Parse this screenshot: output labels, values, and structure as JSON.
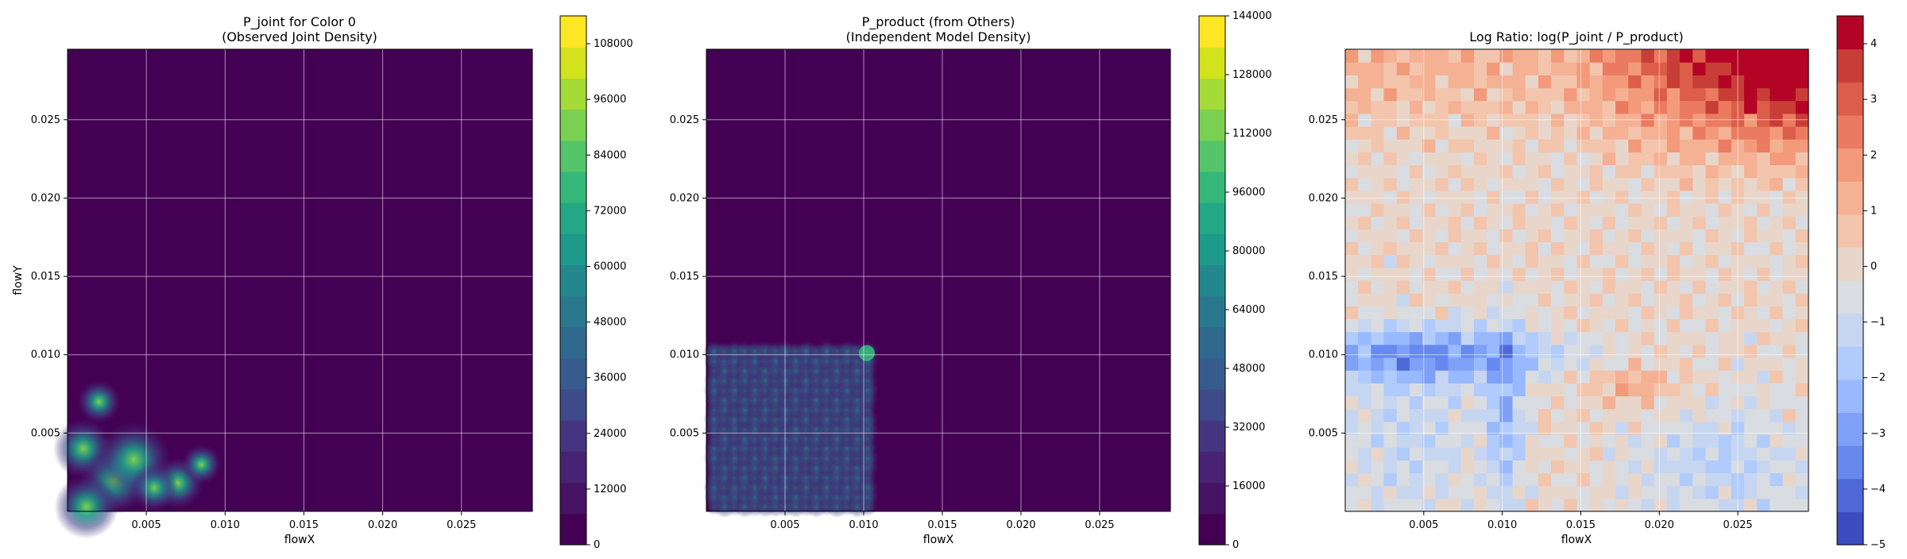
{
  "figure": {
    "panels": [
      {
        "title_line1": "P_joint for Color 0",
        "title_line2": "(Observed Joint Density)",
        "xlabel": "flowX",
        "ylabel": "flowY"
      },
      {
        "title_line1": "P_product (from Others)",
        "title_line2": "(Independent Model Density)",
        "xlabel": "flowX",
        "ylabel": ""
      },
      {
        "title_line1": "Log Ratio: log(P_joint / P_product)",
        "title_line2": "",
        "xlabel": "flowX",
        "ylabel": ""
      }
    ]
  },
  "chart_data": [
    {
      "type": "heatmap",
      "title": "P_joint for Color 0\n(Observed Joint Density)",
      "xlabel": "flowX",
      "ylabel": "flowY",
      "xlim": [
        0.0,
        0.0295
      ],
      "ylim": [
        0.0,
        0.0295
      ],
      "xticks": [
        "0.005",
        "0.010",
        "0.015",
        "0.020",
        "0.025"
      ],
      "yticks": [
        "0.005",
        "0.010",
        "0.015",
        "0.020",
        "0.025"
      ],
      "grid": true,
      "colormap": "viridis",
      "colorbar_range": [
        0,
        114000
      ],
      "colorbar_ticks": [
        "0",
        "12000",
        "24000",
        "36000",
        "48000",
        "60000",
        "72000",
        "84000",
        "96000",
        "108000"
      ],
      "hotspots": [
        {
          "x": 0.001,
          "y": 0.004,
          "value": 60000
        },
        {
          "x": 0.003,
          "y": 0.002,
          "value": 80000
        },
        {
          "x": 0.0042,
          "y": 0.0033,
          "value": 96000
        },
        {
          "x": 0.0012,
          "y": 0.0003,
          "value": 70000
        },
        {
          "x": 0.007,
          "y": 0.0018,
          "value": 40000
        },
        {
          "x": 0.002,
          "y": 0.007,
          "value": 20000
        },
        {
          "x": 0.0055,
          "y": 0.0015,
          "value": 30000
        },
        {
          "x": 0.0085,
          "y": 0.003,
          "value": 12000
        }
      ]
    },
    {
      "type": "heatmap",
      "title": "P_product (from Others)\n(Independent Model Density)",
      "xlabel": "flowX",
      "ylabel": "",
      "xlim": [
        0.0,
        0.0295
      ],
      "ylim": [
        0.0,
        0.0295
      ],
      "xticks": [
        "0.005",
        "0.010",
        "0.015",
        "0.020",
        "0.025"
      ],
      "yticks": [
        "0.005",
        "0.010",
        "0.015",
        "0.020",
        "0.025"
      ],
      "grid": true,
      "colormap": "viridis",
      "colorbar_range": [
        0,
        144000
      ],
      "colorbar_ticks": [
        "0",
        "16000",
        "32000",
        "48000",
        "64000",
        "80000",
        "96000",
        "112000",
        "128000",
        "144000"
      ],
      "support_x": [
        0.0,
        0.0105
      ],
      "support_y": [
        0.0,
        0.0105
      ],
      "peak": {
        "x": 0.0102,
        "y": 0.0101,
        "value": 70000
      }
    },
    {
      "type": "heatmap",
      "title": "Log Ratio: log(P_joint / P_product)",
      "xlabel": "flowX",
      "ylabel": "",
      "xlim": [
        0.0,
        0.0295
      ],
      "ylim": [
        0.0,
        0.0295
      ],
      "xticks": [
        "0.005",
        "0.010",
        "0.015",
        "0.020",
        "0.025"
      ],
      "yticks": [
        "0.005",
        "0.010",
        "0.015",
        "0.020",
        "0.025"
      ],
      "grid": true,
      "colormap": "coolwarm",
      "colorbar_range": [
        -5,
        4.5
      ],
      "colorbar_ticks": [
        "4",
        "3",
        "2",
        "1",
        "0",
        "−1",
        "−2",
        "−3",
        "−4",
        "−5"
      ],
      "max_region": {
        "x": 0.027,
        "y": 0.028,
        "value": 4.0
      },
      "min_band": {
        "x": 0.005,
        "y": 0.01,
        "value": -3.0
      }
    }
  ]
}
